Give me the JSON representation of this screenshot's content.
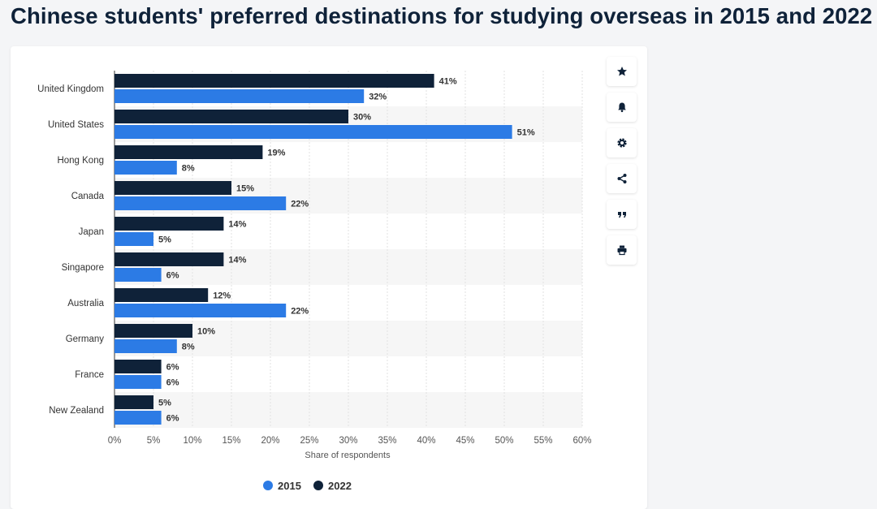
{
  "page": {
    "title": "Chinese students' preferred destinations for studying overseas in 2015 and 2022"
  },
  "toolbar": {
    "buttons": [
      {
        "icon": "star-icon"
      },
      {
        "icon": "bell-icon"
      },
      {
        "icon": "gear-icon"
      },
      {
        "icon": "share-icon"
      },
      {
        "icon": "quote-icon"
      },
      {
        "icon": "print-icon"
      }
    ]
  },
  "colors": {
    "series_2015": "#2c7be5",
    "series_2022": "#0f2239",
    "stripe": "#f6f6f6",
    "grid": "#e2e2e2",
    "text": "#333333"
  },
  "chart_data": {
    "type": "bar",
    "orientation": "horizontal",
    "categories": [
      "United Kingdom",
      "United States",
      "Hong Kong",
      "Canada",
      "Japan",
      "Singapore",
      "Australia",
      "Germany",
      "France",
      "New Zealand"
    ],
    "series": [
      {
        "name": "2022",
        "values": [
          41,
          30,
          19,
          15,
          14,
          14,
          12,
          10,
          6,
          5
        ]
      },
      {
        "name": "2015",
        "values": [
          32,
          51,
          8,
          22,
          5,
          6,
          22,
          8,
          6,
          6
        ]
      }
    ],
    "value_suffix": "%",
    "xlabel": "Share of respondents",
    "xlim": [
      0,
      60
    ],
    "xticks": [
      0,
      5,
      10,
      15,
      20,
      25,
      30,
      35,
      40,
      45,
      50,
      55,
      60
    ],
    "tick_suffix": "%",
    "grid": true,
    "legend": {
      "placement": "bottom",
      "items": [
        "2015",
        "2022"
      ]
    }
  }
}
